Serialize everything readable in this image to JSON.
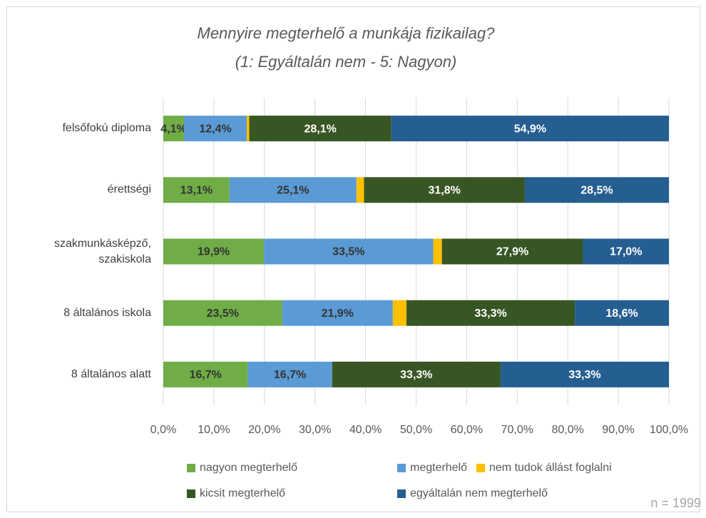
{
  "chart_data": {
    "type": "stacked_barh",
    "title": "Mennyire megterhelő a munkája fizikailag?",
    "subtitle": "(1: Egyáltalán nem - 5: Nagyon)",
    "annotation": "n = 1999",
    "categories": [
      "felsőfokú diploma",
      "érettségi",
      "szakmunkásképző, szakiskola",
      "8 általános iskola",
      "8 általános alatt"
    ],
    "series": [
      {
        "name": "nagyon megterhelő",
        "color": "#70ad47",
        "label_color": "#333333",
        "values": [
          4.1,
          13.1,
          19.9,
          23.5,
          16.7
        ],
        "value_labels": [
          "4,1%",
          "13,1%",
          "19,9%",
          "23,5%",
          "16,7%"
        ]
      },
      {
        "name": "megterhelő",
        "color": "#5b9bd5",
        "label_color": "#333333",
        "values": [
          12.4,
          25.1,
          33.5,
          21.9,
          16.7
        ],
        "value_labels": [
          "12,4%",
          "25,1%",
          "33,5%",
          "21,9%",
          "16,7%"
        ]
      },
      {
        "name": "nem tudok állást foglalni",
        "color": "#ffc000",
        "values": [
          0.5,
          1.5,
          1.7,
          2.7,
          0
        ]
      },
      {
        "name": "kicsit megterhelő",
        "color": "#375623",
        "label_color": "#ffffff",
        "values": [
          28.1,
          31.8,
          27.9,
          33.3,
          33.3
        ],
        "value_labels": [
          "28,1%",
          "31,8%",
          "27,9%",
          "33,3%",
          "33,3%"
        ]
      },
      {
        "name": "egyáltalán nem megterhelő",
        "color": "#255e91",
        "label_color": "#ffffff",
        "values": [
          54.9,
          28.5,
          17.0,
          18.6,
          33.3
        ],
        "value_labels": [
          "54,9%",
          "28,5%",
          "17,0%",
          "18,6%",
          "33,3%"
        ]
      }
    ],
    "xlim": [
      0,
      100
    ],
    "xticks": [
      {
        "value": 0,
        "label": "0,0%"
      },
      {
        "value": 10,
        "label": "10,0%"
      },
      {
        "value": 20,
        "label": "20,0%"
      },
      {
        "value": 30,
        "label": "30,0%"
      },
      {
        "value": 40,
        "label": "40,0%"
      },
      {
        "value": 50,
        "label": "50,0%"
      },
      {
        "value": 60,
        "label": "60,0%"
      },
      {
        "value": 70,
        "label": "70,0%"
      },
      {
        "value": 80,
        "label": "80,0%"
      },
      {
        "value": 90,
        "label": "90,0%"
      },
      {
        "value": 100,
        "label": "100,0%"
      }
    ],
    "grid": true
  }
}
